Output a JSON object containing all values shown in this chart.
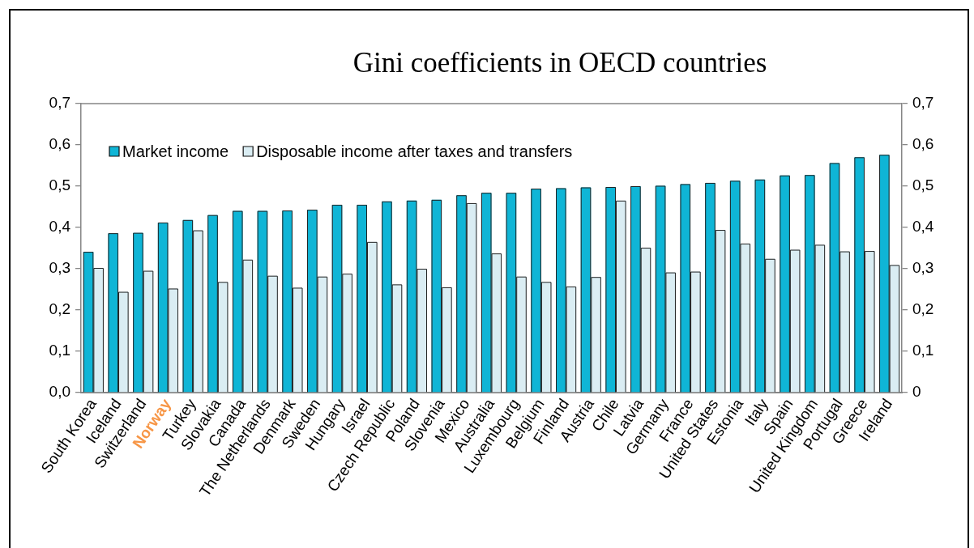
{
  "chart_data": {
    "type": "bar",
    "title": "Gini coefficients in OECD countries",
    "categories": [
      "South Korea",
      "Iceland",
      "Switzerland",
      "Norway",
      "Turkey",
      "Slovakia",
      "Canada",
      "The Netherlands",
      "Denmark",
      "Sweden",
      "Hungary",
      "Israel",
      "Czech Republic",
      "Poland",
      "Slovenia",
      "Mexico",
      "Australia",
      "Luxembourg",
      "Belgium",
      "Finland",
      "Austria",
      "Chile",
      "Latvia",
      "Germany",
      "France",
      "United States",
      "Estonia",
      "Italy",
      "Spain",
      "United Kingdom",
      "Portugal",
      "Greece",
      "Ireland"
    ],
    "series": [
      {
        "name": "Market income",
        "color": "#0fb5d6",
        "values": [
          0.341,
          0.386,
          0.387,
          0.412,
          0.418,
          0.43,
          0.44,
          0.44,
          0.441,
          0.443,
          0.455,
          0.455,
          0.463,
          0.465,
          0.467,
          0.478,
          0.484,
          0.484,
          0.494,
          0.495,
          0.497,
          0.498,
          0.5,
          0.501,
          0.505,
          0.508,
          0.513,
          0.516,
          0.526,
          0.527,
          0.556,
          0.57,
          0.576
        ]
      },
      {
        "name": "Disposable income after taxes and transfers",
        "color": "#daedf3",
        "values": [
          0.302,
          0.244,
          0.295,
          0.252,
          0.393,
          0.268,
          0.322,
          0.283,
          0.254,
          0.281,
          0.288,
          0.365,
          0.262,
          0.3,
          0.255,
          0.459,
          0.337,
          0.281,
          0.268,
          0.257,
          0.28,
          0.465,
          0.351,
          0.291,
          0.293,
          0.394,
          0.361,
          0.324,
          0.346,
          0.358,
          0.342,
          0.343,
          0.309
        ]
      }
    ],
    "ylim": [
      0,
      0.7
    ],
    "yticks": [
      {
        "value": 0,
        "label": "0,0"
      },
      {
        "value": 0.1,
        "label": "0,1"
      },
      {
        "value": 0.2,
        "label": "0,2"
      },
      {
        "value": 0.3,
        "label": "0,3"
      },
      {
        "value": 0.4,
        "label": "0,4"
      },
      {
        "value": 0.5,
        "label": "0,5"
      },
      {
        "value": 0.6,
        "label": "0,6"
      },
      {
        "value": 0.7,
        "label": "0,7"
      }
    ],
    "y2lim": [
      0,
      0.7
    ],
    "y2ticks": [
      0,
      {
        "value": 0.1,
        "label": "0,1"
      },
      {
        "value": 0.2,
        "label": "0,2"
      },
      {
        "value": 0.3,
        "label": "0,3"
      },
      {
        "value": 0.4,
        "label": "0,4"
      },
      {
        "value": 0.5,
        "label": "0,5"
      },
      {
        "value": 0.6,
        "label": "0,6"
      },
      {
        "value": 0.7,
        "label": "0,7"
      }
    ],
    "legend": "top left"
  }
}
